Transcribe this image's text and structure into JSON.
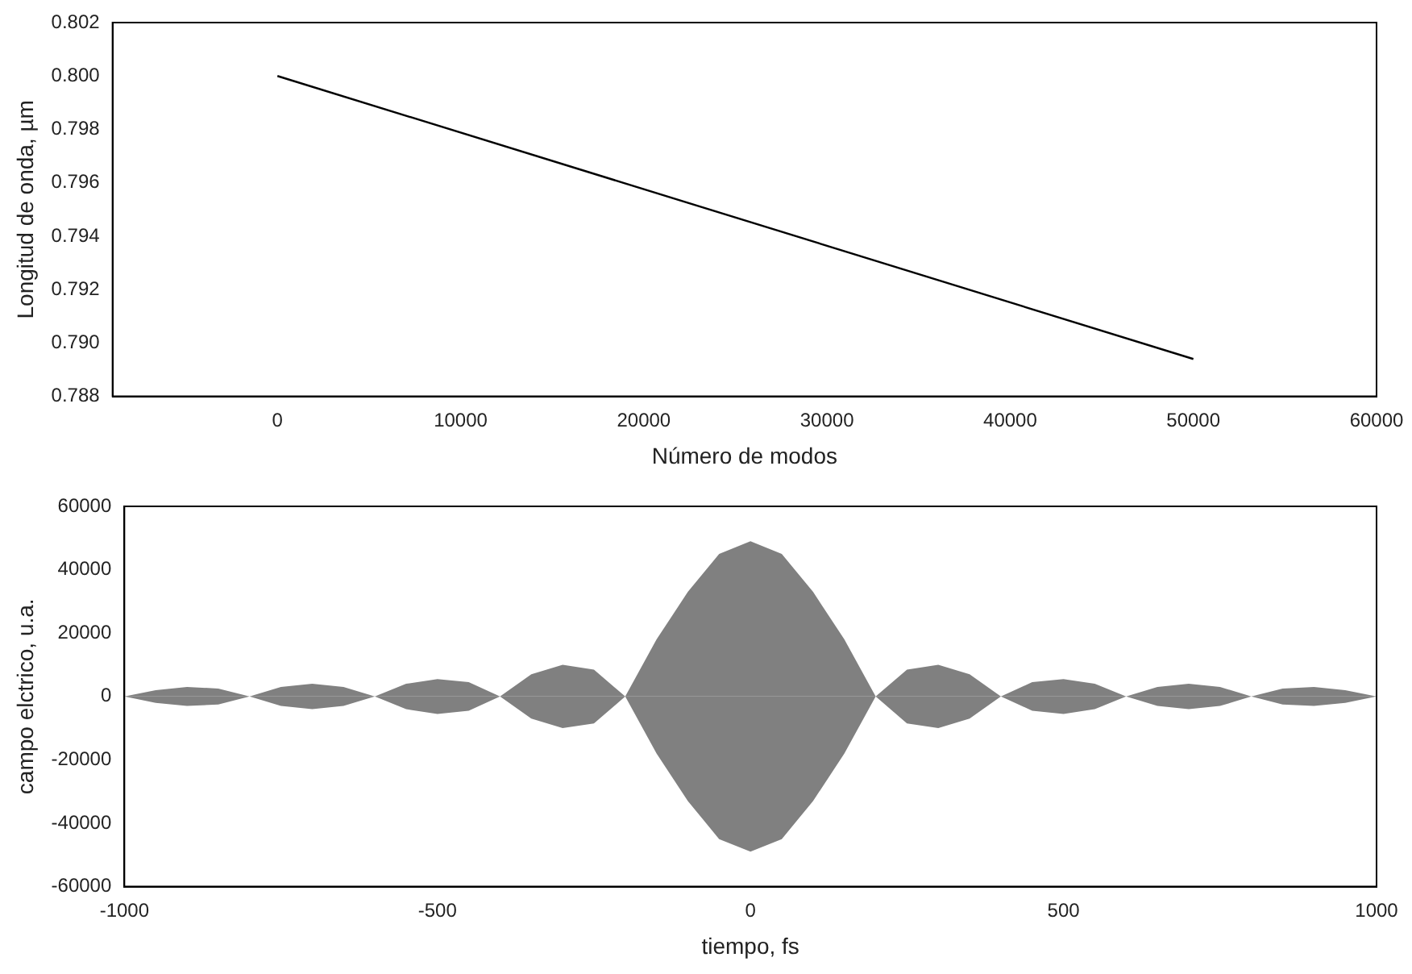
{
  "chart_data": [
    {
      "type": "line",
      "xlabel": "Número de modos",
      "ylabel": "Longitud de onda, µm",
      "marker": "none",
      "xlim": [
        -9000,
        60000
      ],
      "xticks": [
        0,
        10000,
        20000,
        30000,
        40000,
        50000,
        60000
      ],
      "ylim": [
        0.788,
        0.802
      ],
      "yticks": [
        0.788,
        {
          "value": 0.79,
          "label": "0.790"
        },
        0.792,
        0.794,
        0.796,
        0.798,
        {
          "value": 0.8,
          "label": "0.800"
        },
        0.802
      ],
      "x": [
        0,
        50000
      ],
      "series": [
        {
          "color": "#000000",
          "values": [
            0.8,
            0.7894
          ]
        }
      ]
    },
    {
      "type": "area",
      "marker": "none",
      "xlabel": "tiempo, fs",
      "ylabel": "campo elctrico, u.a.",
      "xlim": [
        -1000,
        1000
      ],
      "xticks": [
        -1000,
        -500,
        0,
        500,
        1000
      ],
      "ylim": [
        -60000,
        60000
      ],
      "yticks": [
        -60000,
        -40000,
        -20000,
        0,
        20000,
        40000,
        60000
      ],
      "x": [
        -1000,
        -950,
        -900,
        -850,
        -800,
        -750,
        -700,
        -650,
        -600,
        -550,
        -500,
        -450,
        -400,
        -350,
        -300,
        -250,
        -200,
        -150,
        -100,
        -50,
        0,
        50,
        100,
        150,
        200,
        250,
        300,
        350,
        400,
        450,
        500,
        550,
        600,
        650,
        700,
        750,
        800,
        850,
        900,
        950,
        1000
      ],
      "series": [
        {
          "color": "#808080",
          "values": [
            0,
            2000,
            3000,
            2500,
            0,
            3000,
            4000,
            3000,
            0,
            4000,
            5500,
            4500,
            0,
            7000,
            10000,
            8500,
            0,
            18000,
            33000,
            45000,
            49000,
            45000,
            33000,
            18000,
            0,
            8500,
            10000,
            7000,
            0,
            4500,
            5500,
            4000,
            0,
            3000,
            4000,
            3000,
            0,
            2500,
            3000,
            2000,
            0
          ]
        },
        {
          "color": "#808080",
          "values": [
            0,
            -2000,
            -3000,
            -2500,
            0,
            -3000,
            -4000,
            -3000,
            0,
            -4000,
            -5500,
            -4500,
            0,
            -7000,
            -10000,
            -8500,
            0,
            -18000,
            -33000,
            -45000,
            -49000,
            -45000,
            -33000,
            -18000,
            0,
            -8500,
            -10000,
            -7000,
            0,
            -4500,
            -5500,
            -4000,
            0,
            -3000,
            -4000,
            -3000,
            0,
            -2500,
            -3000,
            -2000,
            0
          ]
        }
      ]
    }
  ]
}
